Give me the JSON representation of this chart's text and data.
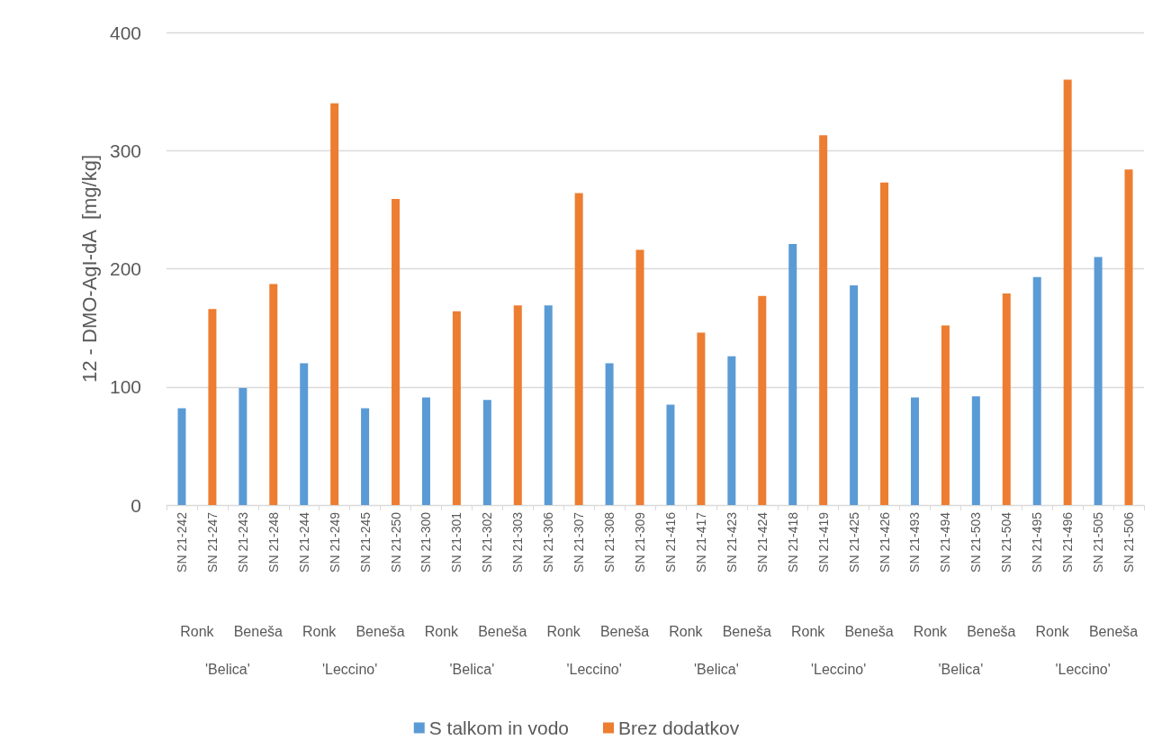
{
  "chart_data": {
    "type": "bar",
    "ylabel": "12 - DMO-AgI-dA  [mg/kg]",
    "categories": [
      "SN 21-242",
      "SN 21-247",
      "SN 21-243",
      "SN 21-248",
      "SN 21-244",
      "SN 21-249",
      "SN 21-245",
      "SN 21-250",
      "SN 21-300",
      "SN 21-301",
      "SN 21-302",
      "SN 21-303",
      "SN 21-306",
      "SN 21-307",
      "SN 21-308",
      "SN 21-309",
      "SN 21-416",
      "SN 21-417",
      "SN 21-423",
      "SN 21-424",
      "SN 21-418",
      "SN 21-419",
      "SN 21-425",
      "SN 21-426",
      "SN 21-493",
      "SN 21-494",
      "SN 21-503",
      "SN 21-504",
      "SN 21-495",
      "SN 21-496",
      "SN 21-505",
      "SN 21-506"
    ],
    "series": [
      {
        "name": "S talkom in vodo",
        "color": "#5b9bd5",
        "values": [
          82,
          null,
          99,
          null,
          120,
          null,
          82,
          null,
          91,
          null,
          89,
          null,
          169,
          null,
          120,
          null,
          85,
          null,
          126,
          null,
          221,
          null,
          186,
          null,
          91,
          null,
          92,
          null,
          193,
          null,
          210,
          null
        ]
      },
      {
        "name": "Brez dodatkov",
        "color": "#ed7d31",
        "values": [
          null,
          166,
          null,
          187,
          null,
          340,
          null,
          259,
          null,
          164,
          null,
          169,
          null,
          264,
          null,
          216,
          null,
          146,
          null,
          177,
          null,
          313,
          null,
          273,
          null,
          152,
          null,
          179,
          null,
          360,
          null,
          284
        ]
      }
    ],
    "annotations": [
      "Ronk",
      "Beneša",
      "Ronk",
      "Beneša",
      "Ronk",
      "Beneša",
      "Ronk",
      "Beneša",
      "Ronk",
      "Beneša",
      "Ronk",
      "Beneša",
      "Ronk",
      "Beneša",
      "Ronk",
      "Beneša",
      "'Belica'",
      "'Leccino'",
      "'Belica'",
      "'Leccino'",
      "'Belica'",
      "'Leccino'",
      "'Belica'",
      "'Leccino'"
    ],
    "ylim": [
      0,
      400
    ],
    "yticks": [
      0,
      100,
      200,
      300,
      400
    ],
    "grid": "y",
    "legend": "bottom"
  }
}
